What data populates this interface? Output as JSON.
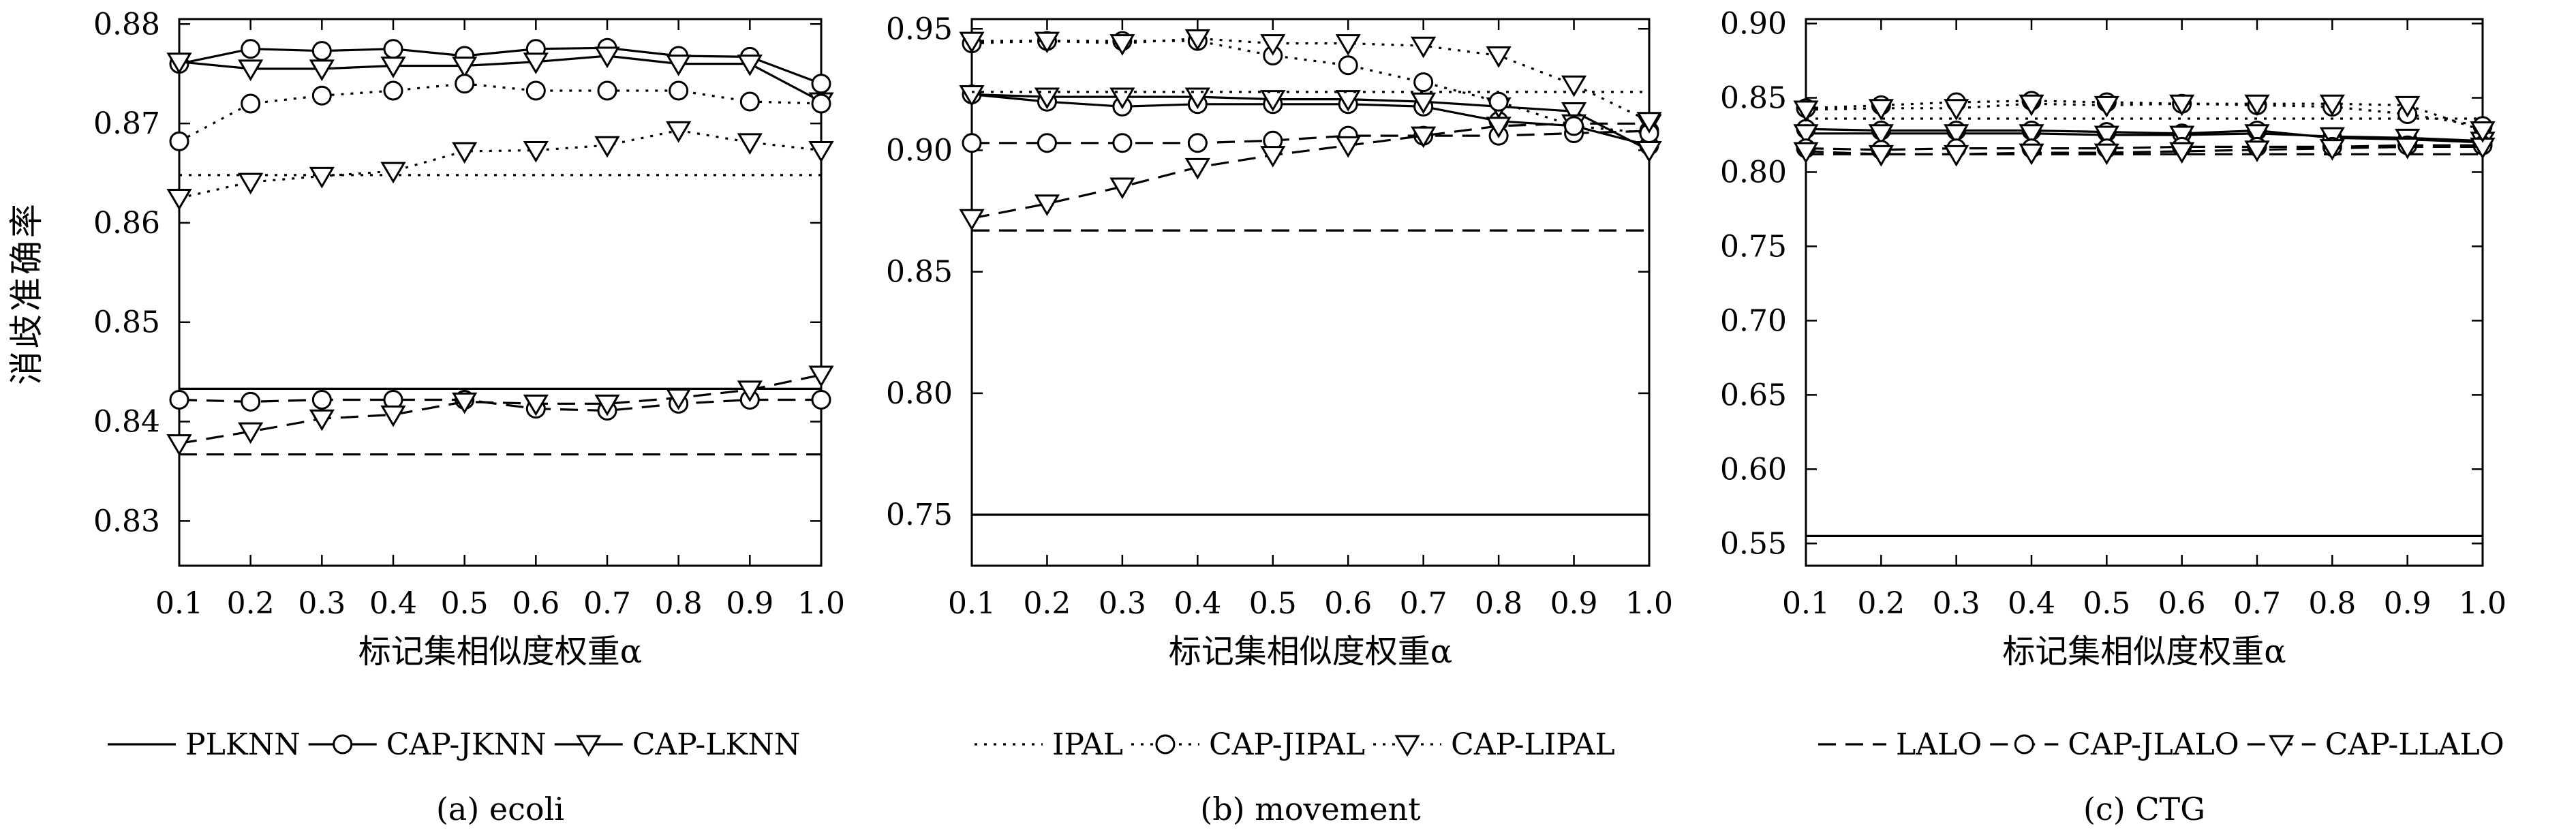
{
  "shared_ylabel": "消歧准确率",
  "chart_data": [
    {
      "type": "line",
      "caption": "(a) ecoli",
      "xlabel": "标记集相似度权重α",
      "x": [
        0.1,
        0.2,
        0.3,
        0.4,
        0.5,
        0.6,
        0.7,
        0.8,
        0.9,
        1.0
      ],
      "xticks": [
        "0.1",
        "0.2",
        "0.3",
        "0.4",
        "0.5",
        "0.6",
        "0.7",
        "0.8",
        "0.9",
        "1.0"
      ],
      "ylim": [
        0.8255,
        0.8805
      ],
      "yticks": [
        "0.83",
        "0.84",
        "0.85",
        "0.86",
        "0.87",
        "0.88"
      ],
      "ytick_values": [
        0.83,
        0.84,
        0.85,
        0.86,
        0.87,
        0.88
      ],
      "legend_labels": [
        "PLKNN",
        "CAP-JKNN",
        "CAP-LKNN"
      ],
      "series": [
        {
          "name": "PLKNN",
          "style": "solid",
          "marker": "none",
          "values": [
            0.8433,
            0.8433,
            0.8433,
            0.8433,
            0.8433,
            0.8433,
            0.8433,
            0.8433,
            0.8433,
            0.8433
          ]
        },
        {
          "name": "CAP-JKNN",
          "style": "solid",
          "marker": "circle",
          "values": [
            0.876,
            0.8775,
            0.8773,
            0.8775,
            0.8768,
            0.8775,
            0.8776,
            0.8768,
            0.8767,
            0.874
          ]
        },
        {
          "name": "CAP-LKNN",
          "style": "solid",
          "marker": "triangle",
          "values": [
            0.8762,
            0.8755,
            0.8755,
            0.8758,
            0.8758,
            0.8762,
            0.8768,
            0.876,
            0.876,
            0.8722
          ]
        },
        {
          "style": "dashed",
          "marker": "none",
          "values": [
            0.8367,
            0.8367,
            0.8367,
            0.8367,
            0.8367,
            0.8367,
            0.8367,
            0.8367,
            0.8367,
            0.8367
          ]
        },
        {
          "style": "dashed",
          "marker": "circle",
          "values": [
            0.8422,
            0.842,
            0.8422,
            0.8422,
            0.8422,
            0.8413,
            0.8411,
            0.8418,
            0.8422,
            0.8422
          ]
        },
        {
          "style": "dashed",
          "marker": "triangle",
          "values": [
            0.8378,
            0.839,
            0.8403,
            0.8407,
            0.842,
            0.8418,
            0.8418,
            0.8424,
            0.8432,
            0.8447
          ]
        },
        {
          "style": "dotted",
          "marker": "none",
          "values": [
            0.8648,
            0.8648,
            0.8648,
            0.8648,
            0.8648,
            0.8648,
            0.8648,
            0.8648,
            0.8648,
            0.8648
          ]
        },
        {
          "style": "dotted",
          "marker": "circle",
          "values": [
            0.8682,
            0.872,
            0.8728,
            0.8733,
            0.874,
            0.8733,
            0.8733,
            0.8733,
            0.8722,
            0.872
          ]
        },
        {
          "style": "dotted",
          "marker": "triangle",
          "values": [
            0.8625,
            0.8641,
            0.8647,
            0.8652,
            0.8672,
            0.8673,
            0.8678,
            0.8693,
            0.8681,
            0.8673
          ]
        }
      ]
    },
    {
      "type": "line",
      "caption": "(b) movement",
      "xlabel": "标记集相似度权重α",
      "x": [
        0.1,
        0.2,
        0.3,
        0.4,
        0.5,
        0.6,
        0.7,
        0.8,
        0.9,
        1.0
      ],
      "xticks": [
        "0.1",
        "0.2",
        "0.3",
        "0.4",
        "0.5",
        "0.6",
        "0.7",
        "0.8",
        "0.9",
        "1.0"
      ],
      "ylim": [
        0.729,
        0.954
      ],
      "yticks": [
        "0.75",
        "0.80",
        "0.85",
        "0.90",
        "0.95"
      ],
      "ytick_values": [
        0.75,
        0.8,
        0.85,
        0.9,
        0.95
      ],
      "legend_labels": [
        "IPAL",
        "CAP-JIPAL",
        "CAP-LIPAL"
      ],
      "series": [
        {
          "style": "solid",
          "marker": "none",
          "values": [
            0.75,
            0.75,
            0.75,
            0.75,
            0.75,
            0.75,
            0.75,
            0.75,
            0.75,
            0.75
          ]
        },
        {
          "style": "solid",
          "marker": "circle",
          "values": [
            0.923,
            0.92,
            0.918,
            0.919,
            0.919,
            0.919,
            0.918,
            0.912,
            0.91,
            0.902
          ]
        },
        {
          "style": "solid",
          "marker": "triangle",
          "values": [
            0.923,
            0.922,
            0.922,
            0.922,
            0.921,
            0.921,
            0.92,
            0.918,
            0.916,
            0.9
          ]
        },
        {
          "style": "dashed",
          "marker": "none",
          "values": [
            0.867,
            0.867,
            0.867,
            0.867,
            0.867,
            0.867,
            0.867,
            0.867,
            0.867,
            0.867
          ]
        },
        {
          "style": "dashed",
          "marker": "circle",
          "values": [
            0.903,
            0.903,
            0.903,
            0.903,
            0.904,
            0.906,
            0.906,
            0.906,
            0.907,
            0.908
          ]
        },
        {
          "style": "dashed",
          "marker": "triangle",
          "values": [
            0.872,
            0.878,
            0.885,
            0.893,
            0.898,
            0.902,
            0.906,
            0.91,
            0.911,
            0.911
          ]
        },
        {
          "name": "IPAL",
          "style": "dotted",
          "marker": "none",
          "values": [
            0.924,
            0.924,
            0.924,
            0.924,
            0.924,
            0.924,
            0.924,
            0.924,
            0.924,
            0.924
          ]
        },
        {
          "name": "CAP-JIPAL",
          "style": "dotted",
          "marker": "circle",
          "values": [
            0.944,
            0.945,
            0.945,
            0.945,
            0.939,
            0.935,
            0.928,
            0.92,
            0.91,
            0.907
          ]
        },
        {
          "name": "CAP-LIPAL",
          "style": "dotted",
          "marker": "triangle",
          "values": [
            0.945,
            0.945,
            0.944,
            0.946,
            0.944,
            0.944,
            0.943,
            0.939,
            0.927,
            0.912
          ]
        }
      ]
    },
    {
      "type": "line",
      "caption": "(c) CTG",
      "xlabel": "标记集相似度权重α",
      "x": [
        0.1,
        0.2,
        0.3,
        0.4,
        0.5,
        0.6,
        0.7,
        0.8,
        0.9,
        1.0
      ],
      "xticks": [
        "0.1",
        "0.2",
        "0.3",
        "0.4",
        "0.5",
        "0.6",
        "0.7",
        "0.8",
        "0.9",
        "1.0"
      ],
      "ylim": [
        0.535,
        0.903
      ],
      "yticks": [
        "0.55",
        "0.60",
        "0.65",
        "0.70",
        "0.75",
        "0.80",
        "0.85",
        "0.90"
      ],
      "ytick_values": [
        0.55,
        0.6,
        0.65,
        0.7,
        0.75,
        0.8,
        0.85,
        0.9
      ],
      "legend_labels": [
        "LALO",
        "CAP-JLALO",
        "CAP-LLALO"
      ],
      "series": [
        {
          "style": "solid",
          "marker": "none",
          "values": [
            0.555,
            0.555,
            0.555,
            0.555,
            0.555,
            0.555,
            0.555,
            0.555,
            0.555,
            0.555
          ]
        },
        {
          "style": "solid",
          "marker": "circle",
          "values": [
            0.829,
            0.828,
            0.828,
            0.828,
            0.827,
            0.826,
            0.828,
            0.823,
            0.822,
            0.82
          ]
        },
        {
          "style": "solid",
          "marker": "triangle",
          "values": [
            0.826,
            0.826,
            0.826,
            0.826,
            0.825,
            0.825,
            0.826,
            0.824,
            0.823,
            0.821
          ]
        },
        {
          "name": "LALO",
          "style": "dashed",
          "marker": "none",
          "values": [
            0.812,
            0.812,
            0.812,
            0.812,
            0.812,
            0.812,
            0.812,
            0.812,
            0.812,
            0.812
          ]
        },
        {
          "name": "CAP-JLALO",
          "style": "dashed",
          "marker": "circle",
          "values": [
            0.816,
            0.815,
            0.816,
            0.816,
            0.816,
            0.817,
            0.817,
            0.817,
            0.818,
            0.818
          ]
        },
        {
          "name": "CAP-LLALO",
          "style": "dashed",
          "marker": "triangle",
          "values": [
            0.814,
            0.812,
            0.812,
            0.813,
            0.813,
            0.814,
            0.815,
            0.816,
            0.817,
            0.817
          ]
        },
        {
          "style": "dotted",
          "marker": "none",
          "values": [
            0.836,
            0.836,
            0.836,
            0.836,
            0.836,
            0.836,
            0.836,
            0.836,
            0.836,
            0.836
          ]
        },
        {
          "style": "dotted",
          "marker": "circle",
          "values": [
            0.843,
            0.845,
            0.847,
            0.848,
            0.847,
            0.846,
            0.845,
            0.844,
            0.839,
            0.831
          ]
        },
        {
          "style": "dotted",
          "marker": "triangle",
          "values": [
            0.842,
            0.843,
            0.843,
            0.846,
            0.845,
            0.846,
            0.846,
            0.846,
            0.845,
            0.828
          ]
        }
      ]
    }
  ],
  "legends": [
    [
      {
        "label": "PLKNN",
        "style": "solid",
        "marker": "none"
      },
      {
        "label": "CAP-JKNN",
        "style": "solid",
        "marker": "circle"
      },
      {
        "label": "CAP-LKNN",
        "style": "solid",
        "marker": "triangle"
      }
    ],
    [
      {
        "label": "IPAL",
        "style": "dotted",
        "marker": "none"
      },
      {
        "label": "CAP-JIPAL",
        "style": "dotted",
        "marker": "circle"
      },
      {
        "label": "CAP-LIPAL",
        "style": "dotted",
        "marker": "triangle"
      }
    ],
    [
      {
        "label": "LALO",
        "style": "dashed",
        "marker": "none"
      },
      {
        "label": "CAP-JLALO",
        "style": "dashed",
        "marker": "circle"
      },
      {
        "label": "CAP-LLALO",
        "style": "dashed",
        "marker": "triangle"
      }
    ]
  ]
}
